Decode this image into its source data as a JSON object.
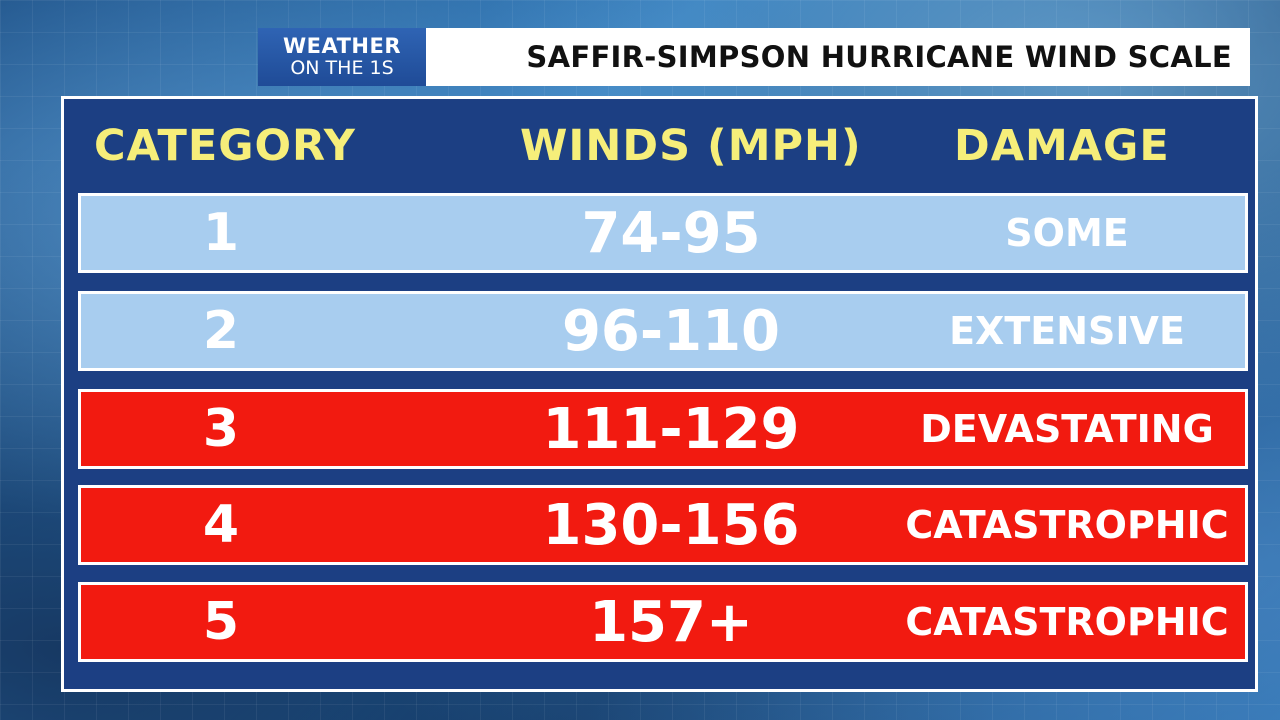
{
  "header": {
    "brand_line1": "WEATHER",
    "brand_line2": "ON THE 1S",
    "title": "SAFFIR-SIMPSON HURRICANE WIND SCALE"
  },
  "table": {
    "columns": [
      "CATEGORY",
      "WINDS (MPH)",
      "DAMAGE"
    ],
    "rows": [
      {
        "category": "1",
        "winds": "74-95",
        "damage": "SOME",
        "color": "#a8cdef"
      },
      {
        "category": "2",
        "winds": "96-110",
        "damage": "EXTENSIVE",
        "color": "#a8cdef"
      },
      {
        "category": "3",
        "winds": "111-129",
        "damage": "DEVASTATING",
        "color": "#f21a10"
      },
      {
        "category": "4",
        "winds": "130-156",
        "damage": "CATASTROPHIC",
        "color": "#f21a10"
      },
      {
        "category": "5",
        "winds": "157+",
        "damage": "CATASTROPHIC",
        "color": "#f21a10"
      }
    ]
  },
  "colors": {
    "panel_background": "#1c3f83",
    "header_text": "#f6ee7a",
    "brand_background": "#2f64b4",
    "title_background": "#ffffff"
  }
}
